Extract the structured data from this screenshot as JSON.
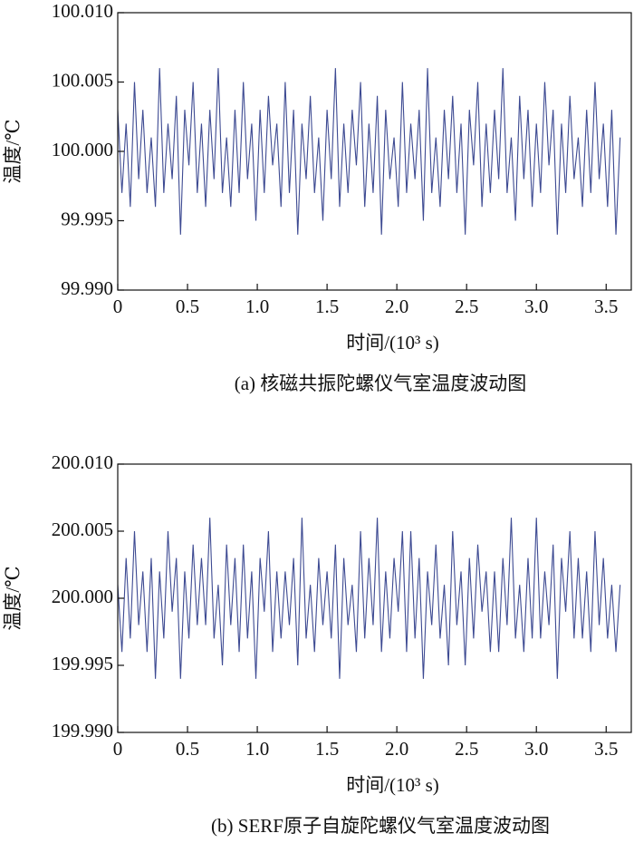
{
  "chart_data": [
    {
      "type": "line",
      "color": "#3d4a92",
      "ylabel": "温度/℃",
      "xlabel": "时间/(10³ s)",
      "caption": "(a) 核磁共振陀螺仪气室温度波动图",
      "xlim": [
        0,
        3.68
      ],
      "ylim": [
        99.99,
        100.01
      ],
      "xticks": [
        0,
        0.5,
        {
          "value": 1,
          "label": "1.0"
        },
        1.5,
        {
          "value": 2,
          "label": "2.0"
        },
        2.5,
        {
          "value": 3,
          "label": "3.0"
        },
        3.5
      ],
      "yticks": [
        {
          "value": 99.99,
          "label": "99.990"
        },
        99.995,
        {
          "value": 100,
          "label": "100.000"
        },
        100.005,
        {
          "value": 100.01,
          "label": "100.010"
        }
      ],
      "x": [
        0,
        0.03,
        0.06,
        0.09,
        0.12,
        0.15,
        0.18,
        0.21,
        0.24,
        0.27,
        0.3,
        0.33,
        0.36,
        0.39,
        0.42,
        0.45,
        0.48,
        0.51,
        0.54,
        0.57,
        0.6,
        0.63,
        0.66,
        0.69,
        0.72,
        0.75,
        0.78,
        0.81,
        0.84,
        0.87,
        0.9,
        0.93,
        0.96,
        0.99,
        1.02,
        1.05,
        1.08,
        1.11,
        1.14,
        1.17,
        1.2,
        1.23,
        1.26,
        1.29,
        1.32,
        1.35,
        1.38,
        1.41,
        1.44,
        1.47,
        1.5,
        1.53,
        1.56,
        1.59,
        1.62,
        1.65,
        1.68,
        1.71,
        1.74,
        1.77,
        1.8,
        1.83,
        1.86,
        1.89,
        1.92,
        1.95,
        1.98,
        2.01,
        2.04,
        2.07,
        2.1,
        2.13,
        2.16,
        2.19,
        2.22,
        2.25,
        2.28,
        2.31,
        2.34,
        2.37,
        2.4,
        2.43,
        2.46,
        2.49,
        2.52,
        2.55,
        2.58,
        2.61,
        2.64,
        2.67,
        2.7,
        2.73,
        2.76,
        2.79,
        2.82,
        2.85,
        2.88,
        2.91,
        2.94,
        2.97,
        3.0,
        3.03,
        3.06,
        3.09,
        3.12,
        3.15,
        3.18,
        3.21,
        3.24,
        3.27,
        3.3,
        3.33,
        3.36,
        3.39,
        3.42,
        3.45,
        3.48,
        3.51,
        3.54,
        3.57,
        3.6
      ],
      "values": [
        100.003,
        99.997,
        100.002,
        99.996,
        100.005,
        99.998,
        100.003,
        99.997,
        100.001,
        99.996,
        100.006,
        99.997,
        100.002,
        99.998,
        100.004,
        99.994,
        100.003,
        99.999,
        100.005,
        99.997,
        100.002,
        99.996,
        100.003,
        99.998,
        100.006,
        99.997,
        100.001,
        99.996,
        100.003,
        99.997,
        100.005,
        99.998,
        100.002,
        99.995,
        100.003,
        99.997,
        100.004,
        99.999,
        100.002,
        99.996,
        100.005,
        99.997,
        100.003,
        99.994,
        100.002,
        99.998,
        100.004,
        99.997,
        100.001,
        99.995,
        100.003,
        99.998,
        100.006,
        99.996,
        100.002,
        99.997,
        100.003,
        99.999,
        100.005,
        99.996,
        100.002,
        99.997,
        100.004,
        99.994,
        100.003,
        99.998,
        100.001,
        99.996,
        100.005,
        99.997,
        100.002,
        99.998,
        100.003,
        99.995,
        100.006,
        99.997,
        100.001,
        99.996,
        100.003,
        99.998,
        100.004,
        99.997,
        100.002,
        99.994,
        100.003,
        99.999,
        100.005,
        99.996,
        100.002,
        99.997,
        100.003,
        99.998,
        100.006,
        99.997,
        100.001,
        99.995,
        100.004,
        99.998,
        100.003,
        99.996,
        100.002,
        99.997,
        100.005,
        99.999,
        100.003,
        99.994,
        100.002,
        99.997,
        100.004,
        99.998,
        100.001,
        99.996,
        100.003,
        99.997,
        100.005,
        99.998,
        100.002,
        99.996,
        100.003,
        99.994,
        100.001
      ]
    },
    {
      "type": "line",
      "color": "#3d4a92",
      "ylabel": "温度/℃",
      "xlabel": "时间/(10³ s)",
      "caption": "(b) SERF原子自旋陀螺仪气室温度波动图",
      "xlim": [
        0,
        3.68
      ],
      "ylim": [
        199.99,
        200.01
      ],
      "xticks": [
        0,
        0.5,
        {
          "value": 1,
          "label": "1.0"
        },
        1.5,
        {
          "value": 2,
          "label": "2.0"
        },
        2.5,
        {
          "value": 3,
          "label": "3.0"
        },
        3.5
      ],
      "yticks": [
        {
          "value": 199.99,
          "label": "199.990"
        },
        199.995,
        {
          "value": 200,
          "label": "200.000"
        },
        200.005,
        {
          "value": 200.01,
          "label": "200.010"
        }
      ],
      "x": [
        0,
        0.03,
        0.06,
        0.09,
        0.12,
        0.15,
        0.18,
        0.21,
        0.24,
        0.27,
        0.3,
        0.33,
        0.36,
        0.39,
        0.42,
        0.45,
        0.48,
        0.51,
        0.54,
        0.57,
        0.6,
        0.63,
        0.66,
        0.69,
        0.72,
        0.75,
        0.78,
        0.81,
        0.84,
        0.87,
        0.9,
        0.93,
        0.96,
        0.99,
        1.02,
        1.05,
        1.08,
        1.11,
        1.14,
        1.17,
        1.2,
        1.23,
        1.26,
        1.29,
        1.32,
        1.35,
        1.38,
        1.41,
        1.44,
        1.47,
        1.5,
        1.53,
        1.56,
        1.59,
        1.62,
        1.65,
        1.68,
        1.71,
        1.74,
        1.77,
        1.8,
        1.83,
        1.86,
        1.89,
        1.92,
        1.95,
        1.98,
        2.01,
        2.04,
        2.07,
        2.1,
        2.13,
        2.16,
        2.19,
        2.22,
        2.25,
        2.28,
        2.31,
        2.34,
        2.37,
        2.4,
        2.43,
        2.46,
        2.49,
        2.52,
        2.55,
        2.58,
        2.61,
        2.64,
        2.67,
        2.7,
        2.73,
        2.76,
        2.79,
        2.82,
        2.85,
        2.88,
        2.91,
        2.94,
        2.97,
        3.0,
        3.03,
        3.06,
        3.09,
        3.12,
        3.15,
        3.18,
        3.21,
        3.24,
        3.27,
        3.3,
        3.33,
        3.36,
        3.39,
        3.42,
        3.45,
        3.48,
        3.51,
        3.54,
        3.57,
        3.6
      ],
      "values": [
        200.001,
        199.996,
        200.003,
        199.997,
        200.005,
        199.998,
        200.002,
        199.996,
        200.003,
        199.994,
        200.002,
        199.997,
        200.005,
        199.999,
        200.003,
        199.994,
        200.002,
        199.997,
        200.004,
        199.998,
        200.003,
        199.998,
        200.006,
        199.997,
        200.001,
        199.995,
        200.004,
        199.998,
        200.003,
        199.996,
        200.004,
        199.997,
        200.002,
        199.994,
        200.003,
        199.999,
        200.005,
        199.996,
        200.002,
        199.997,
        200.002,
        199.998,
        200.003,
        199.995,
        200.006,
        199.997,
        200.001,
        199.996,
        200.003,
        199.998,
        200.002,
        199.997,
        200.004,
        199.994,
        200.003,
        199.998,
        200.001,
        199.996,
        200.005,
        199.997,
        200.003,
        199.998,
        200.006,
        199.996,
        200.002,
        199.997,
        200.003,
        199.999,
        200.005,
        199.996,
        200.005,
        199.997,
        200.003,
        199.994,
        200.002,
        199.998,
        200.004,
        199.997,
        200.001,
        199.995,
        200.005,
        199.998,
        200.002,
        199.995,
        200.003,
        199.997,
        200.004,
        199.999,
        200.002,
        199.996,
        200.002,
        199.996,
        200.003,
        199.998,
        200.006,
        199.997,
        200.001,
        199.996,
        200.003,
        199.997,
        200.006,
        199.997,
        200.002,
        199.998,
        200.004,
        199.994,
        200.003,
        199.999,
        200.005,
        199.997,
        200.003,
        199.997,
        200.002,
        199.996,
        200.005,
        199.998,
        200.003,
        199.997,
        200.001,
        199.996,
        200.001
      ]
    }
  ]
}
